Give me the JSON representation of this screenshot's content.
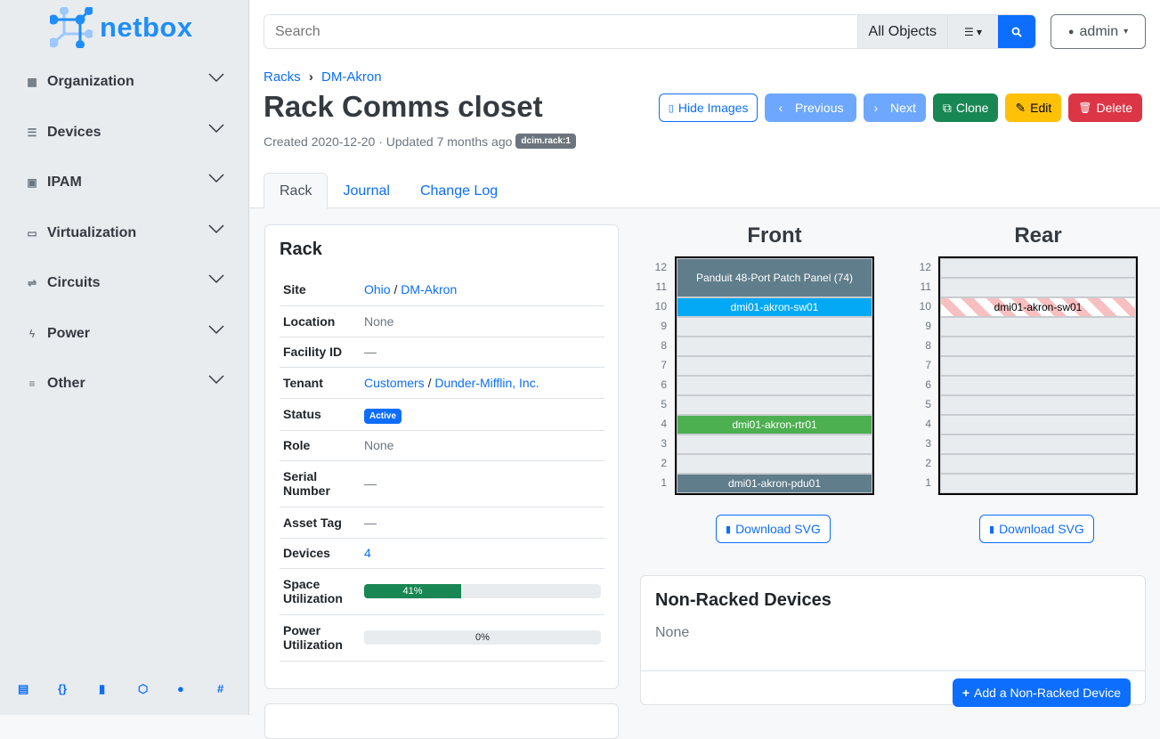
{
  "brand": {
    "name": "netbox"
  },
  "sidebar": {
    "items": [
      {
        "label": "Organization",
        "icon": "domain-icon"
      },
      {
        "label": "Devices",
        "icon": "server-icon"
      },
      {
        "label": "IPAM",
        "icon": "counter-icon"
      },
      {
        "label": "Virtualization",
        "icon": "monitor-icon"
      },
      {
        "label": "Circuits",
        "icon": "transit-icon"
      },
      {
        "label": "Power",
        "icon": "flash-icon"
      },
      {
        "label": "Other",
        "icon": "notes-icon"
      }
    ],
    "footer_icons": [
      "book-icon",
      "api-icon",
      "bookmark-icon",
      "graphql-icon",
      "github-icon",
      "slack-icon"
    ]
  },
  "search": {
    "placeholder": "Search",
    "scope": "All Objects"
  },
  "user": {
    "name": "admin"
  },
  "breadcrumb": [
    "Racks",
    "DM-Akron"
  ],
  "page": {
    "title": "Rack Comms closet",
    "meta": "Created 2020-12-20 · Updated 7 months ago",
    "badge": "dcim.rack:1"
  },
  "actions": {
    "hide_images": "Hide Images",
    "previous": "Previous",
    "next": "Next",
    "clone": "Clone",
    "edit": "Edit",
    "delete": "Delete"
  },
  "tabs": [
    "Rack",
    "Journal",
    "Change Log"
  ],
  "rack_card": {
    "title": "Rack",
    "rows": {
      "site": {
        "label": "Site",
        "link1": "Ohio",
        "sep": " / ",
        "link2": "DM-Akron"
      },
      "location": {
        "label": "Location",
        "value": "None"
      },
      "facility": {
        "label": "Facility ID",
        "value": "—"
      },
      "tenant": {
        "label": "Tenant",
        "link1": "Customers",
        "sep": " / ",
        "link2": "Dunder-Mifflin, Inc."
      },
      "status": {
        "label": "Status",
        "value": "Active"
      },
      "role": {
        "label": "Role",
        "value": "None"
      },
      "serial": {
        "label": "Serial Number",
        "value": "—"
      },
      "asset": {
        "label": "Asset Tag",
        "value": "—"
      },
      "devices": {
        "label": "Devices",
        "value": "4"
      },
      "space": {
        "label": "Space Utilization",
        "value": "41%",
        "percent": 41
      },
      "power": {
        "label": "Power Utilization",
        "value": "0%",
        "percent": 0
      }
    }
  },
  "elevation": {
    "front_title": "Front",
    "rear_title": "Rear",
    "download": "Download SVG",
    "units": [
      12,
      11,
      10,
      9,
      8,
      7,
      6,
      5,
      4,
      3,
      2,
      1
    ],
    "front": [
      {
        "name": "Panduit 48-Port Patch Panel (74)",
        "top": 12,
        "height": 2,
        "color": "#607d8b"
      },
      {
        "name": "dmi01-akron-sw01",
        "top": 10,
        "height": 1,
        "color": "#03a9f4"
      },
      {
        "name": "dmi01-akron-rtr01",
        "top": 4,
        "height": 1,
        "color": "#4caf50"
      },
      {
        "name": "dmi01-akron-pdu01",
        "top": 1,
        "height": 1,
        "color": "#607d8b"
      }
    ],
    "rear": [
      {
        "name": "dmi01-akron-sw01",
        "top": 10,
        "height": 1,
        "color": "striped"
      }
    ]
  },
  "non_racked": {
    "title": "Non-Racked Devices",
    "value": "None",
    "add": "Add a Non-Racked Device"
  }
}
